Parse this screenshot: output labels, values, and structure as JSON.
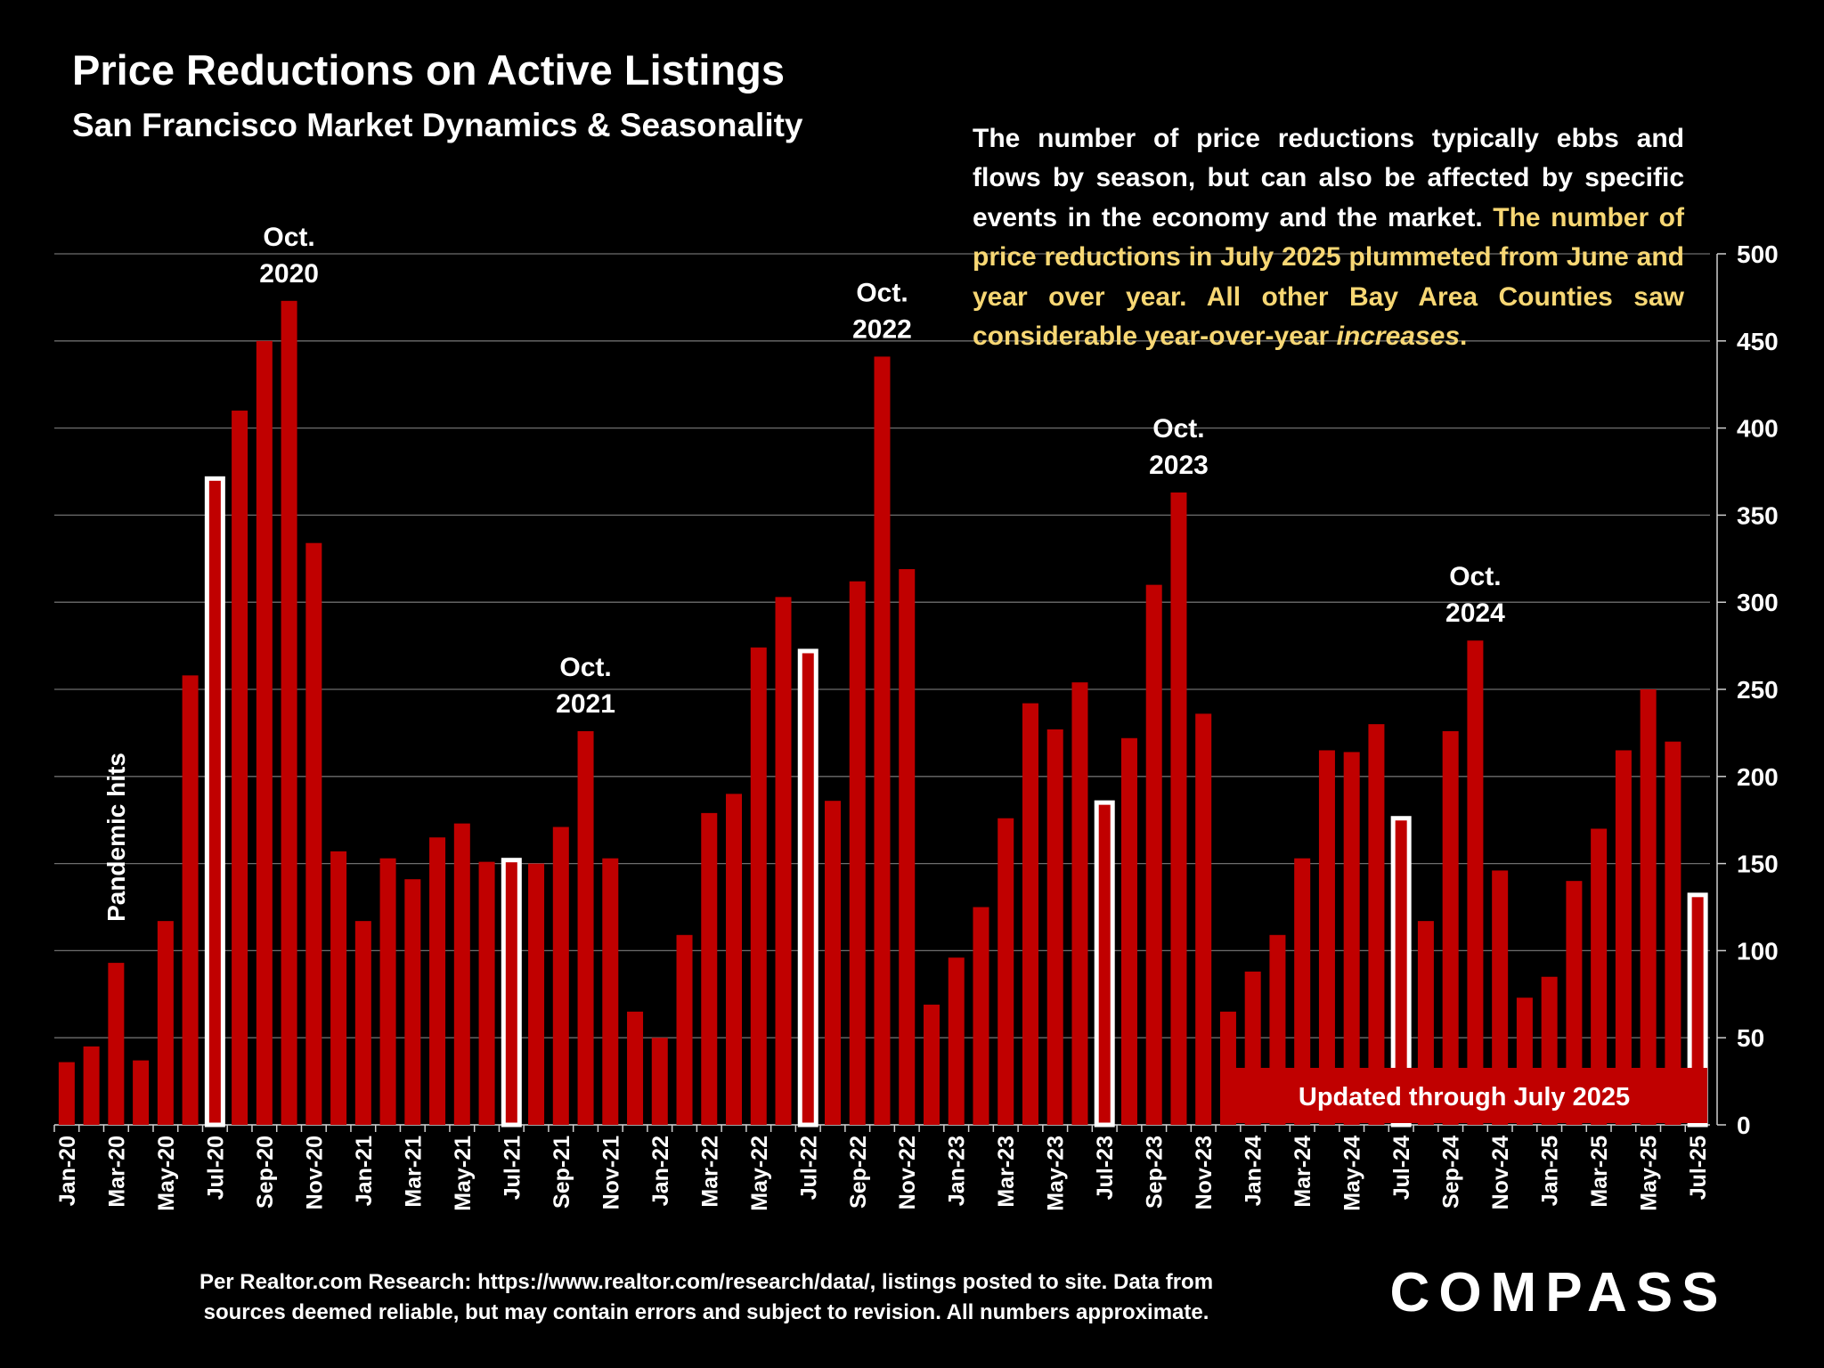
{
  "chart_data": {
    "type": "bar",
    "title": "Price Reductions on Active Listings",
    "subtitle": "San Francisco Market Dynamics & Seasonality",
    "description": {
      "plain": "The number of price reductions typically ebbs and flows by season, but can also be affected by specific events in the economy and the market.",
      "highlight": "The number of price reductions in July 2025 plummeted from June and year over year. All other Bay Area Counties saw considerable year-over-year",
      "emphasis": "increases",
      "end": "."
    },
    "categories": [
      "Jan-20",
      null,
      "Mar-20",
      null,
      "May-20",
      null,
      "Jul-20",
      null,
      "Sep-20",
      null,
      "Nov-20",
      null,
      "Jan-21",
      null,
      "Mar-21",
      null,
      "May-21",
      null,
      "Jul-21",
      null,
      "Sep-21",
      null,
      "Nov-21",
      null,
      "Jan-22",
      null,
      "Mar-22",
      null,
      "May-22",
      null,
      "Jul-22",
      null,
      "Sep-22",
      null,
      "Nov-22",
      null,
      "Jan-23",
      null,
      "Mar-23",
      null,
      "May-23",
      null,
      "Jul-23",
      null,
      "Sep-23",
      null,
      "Nov-23",
      null,
      "Jan-24",
      null,
      "Mar-24",
      null,
      "May-24",
      null,
      "Jul-24",
      null,
      "Sep-24",
      null,
      "Nov-24",
      null,
      "Jan-25",
      null,
      "Mar-25",
      null,
      "May-25",
      null,
      "Jul-25"
    ],
    "values": [
      36,
      45,
      93,
      37,
      117,
      258,
      371,
      410,
      450,
      473,
      334,
      157,
      117,
      153,
      141,
      165,
      173,
      151,
      152,
      150,
      171,
      226,
      153,
      65,
      50,
      109,
      179,
      190,
      274,
      303,
      272,
      186,
      312,
      441,
      319,
      69,
      96,
      125,
      176,
      242,
      227,
      254,
      185,
      222,
      310,
      363,
      236,
      65,
      88,
      109,
      153,
      215,
      214,
      230,
      176,
      117,
      226,
      278,
      146,
      73,
      85,
      140,
      170,
      215,
      250,
      220,
      132
    ],
    "colors": [
      "#c00000",
      "#c00000",
      "#c00000",
      "#c00000",
      "#c00000",
      "#c00000",
      "#ffffff",
      "#c00000",
      "#c00000",
      "#c00000",
      "#c00000",
      "#c00000",
      "#c00000",
      "#c00000",
      "#c00000",
      "#c00000",
      "#c00000",
      "#c00000",
      "#ffffff",
      "#c00000",
      "#c00000",
      "#c00000",
      "#c00000",
      "#c00000",
      "#c00000",
      "#c00000",
      "#c00000",
      "#c00000",
      "#c00000",
      "#c00000",
      "#ffffff",
      "#c00000",
      "#c00000",
      "#c00000",
      "#c00000",
      "#c00000",
      "#c00000",
      "#c00000",
      "#c00000",
      "#c00000",
      "#c00000",
      "#c00000",
      "#ffffff",
      "#c00000",
      "#c00000",
      "#c00000",
      "#c00000",
      "#c00000",
      "#c00000",
      "#c00000",
      "#c00000",
      "#c00000",
      "#c00000",
      "#c00000",
      "#ffffff",
      "#c00000",
      "#c00000",
      "#c00000",
      "#c00000",
      "#c00000",
      "#c00000",
      "#c00000",
      "#c00000",
      "#c00000",
      "#c00000",
      "#c00000",
      "#ffffff"
    ],
    "ylim": [
      0,
      500
    ],
    "yticks": [
      0,
      50,
      100,
      150,
      200,
      250,
      300,
      350,
      400,
      450,
      500
    ],
    "grid": true,
    "annotations": [
      [
        "Oct.",
        "2020"
      ],
      [
        "Oct.",
        "2021"
      ],
      [
        "Oct.",
        "2022"
      ],
      [
        "Oct.",
        "2023"
      ],
      [
        "Oct.",
        "2024"
      ]
    ],
    "side_note": "Pandemic hits",
    "badge": "Updated through July 2025",
    "source": [
      "Per Realtor.com Research:  https://www.realtor.com/research/data/, listings posted to site. Data from",
      "sources deemed reliable, but may contain errors and subject to revision. All numbers approximate."
    ],
    "brand": "COMPASS"
  }
}
